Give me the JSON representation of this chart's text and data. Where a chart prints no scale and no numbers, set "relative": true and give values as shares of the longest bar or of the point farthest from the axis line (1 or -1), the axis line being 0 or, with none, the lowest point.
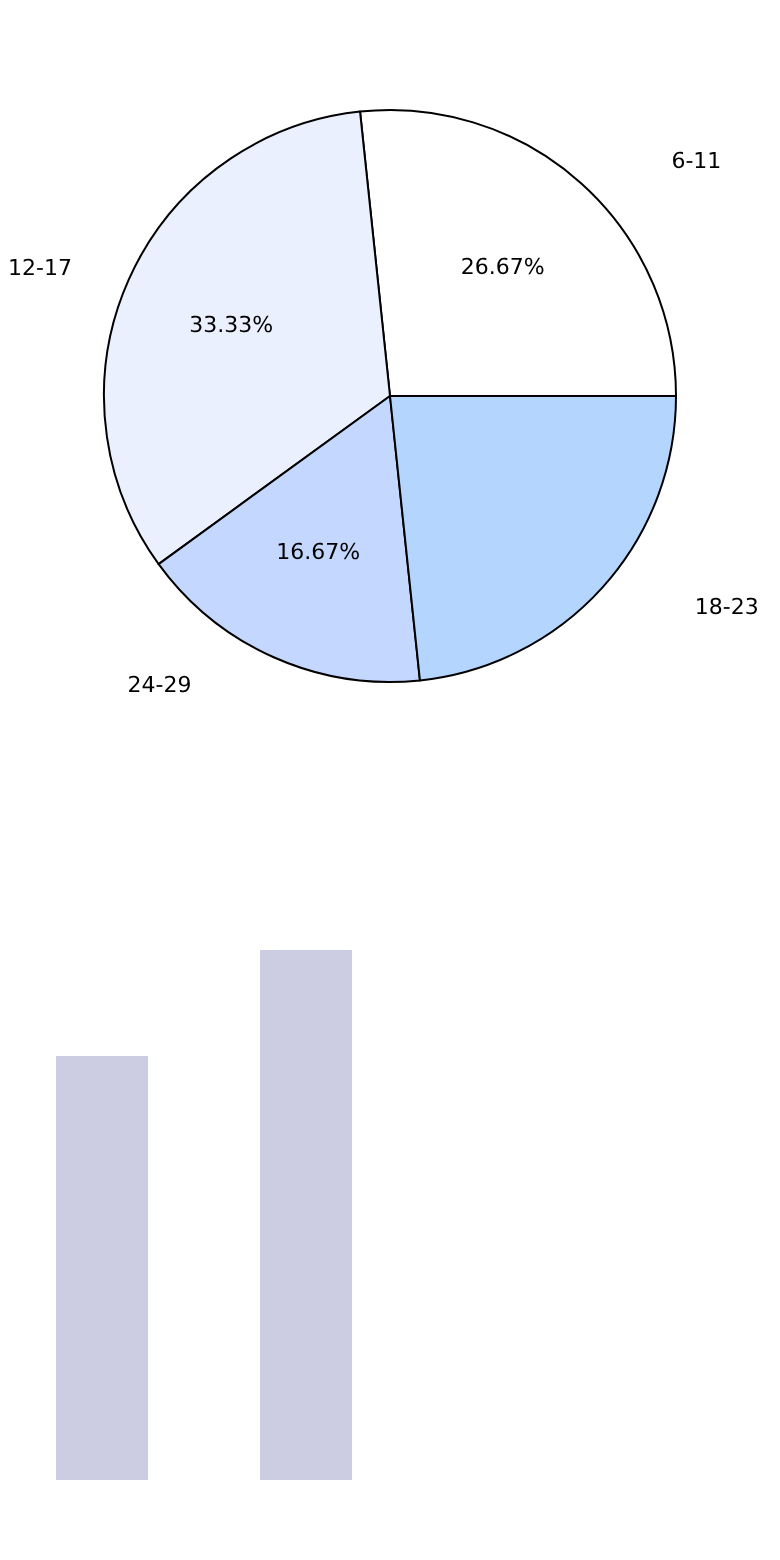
{
  "chart_data": [
    {
      "type": "pie",
      "categories": [
        "6-11",
        "12-17",
        "24-29",
        "18-23"
      ],
      "values": [
        26.67,
        33.33,
        16.67,
        23.33
      ],
      "colors": [
        "#ffffff",
        "#eaf0fe",
        "#c4d7fe",
        "#b4d6fe"
      ],
      "value_labels": [
        "26.67%",
        "33.33%",
        "16.67%",
        null
      ],
      "legend": false
    },
    {
      "type": "bar",
      "relative": true,
      "categories": [
        null,
        null
      ],
      "values": [
        0.8,
        1
      ],
      "color": "#cccce3",
      "legend": false
    }
  ]
}
